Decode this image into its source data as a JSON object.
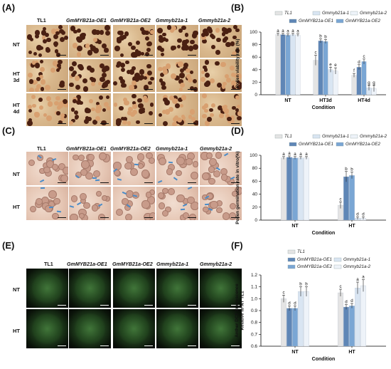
{
  "panels": {
    "A": {
      "label": "(A)",
      "columns": [
        "TL1",
        "GmMYB21a-OE1",
        "GmMYB21a-OE2",
        "Gmmyb21a-1",
        "Gmmyb21a-2"
      ],
      "rows": [
        [
          "NT"
        ],
        [
          "HT",
          "3d"
        ],
        [
          "HT",
          "4d"
        ]
      ]
    },
    "C": {
      "label": "(C)",
      "columns": [
        "TL1",
        "GmMYB21a-OE1",
        "GmMYB21a-OE2",
        "Gmmyb21a-1",
        "Gmmyb21a-2"
      ],
      "rows": [
        [
          "NT"
        ],
        [
          "HT"
        ]
      ]
    },
    "E": {
      "label": "(E)",
      "columns": [
        "TL1",
        "GmMYB21a-OE1",
        "GmMYB21a-OE2",
        "Gmmyb21a-1",
        "Gmmyb21a-2"
      ],
      "rows": [
        [
          "NT"
        ],
        [
          "HT"
        ]
      ]
    },
    "B": {
      "label": "(B)"
    },
    "D": {
      "label": "(D)"
    },
    "F": {
      "label": "(F)"
    }
  },
  "chart_data": [
    {
      "id": "B",
      "type": "bar",
      "ylabel": "Pollen viability rate (%)",
      "xlabel": "Condition",
      "categories": [
        "NT",
        "HT3d",
        "HT4d"
      ],
      "ylim": [
        0,
        100
      ],
      "yticks": [
        0,
        20,
        40,
        60,
        80,
        100
      ],
      "legend": [
        [
          "TL1",
          "Gmmyb21a-1",
          "Gmmyb21a-2"
        ],
        [
          "GmMYB21a-OE1",
          "GmMYB21a-OE2"
        ]
      ],
      "series": [
        {
          "name": "TL1",
          "color": "#e4e4e4",
          "values": [
            96,
            55,
            31
          ],
          "errors": [
            2,
            8,
            3
          ],
          "letters": [
            "a",
            "c",
            "f"
          ]
        },
        {
          "name": "GmMYB21a-OE1",
          "color": "#5f86b6",
          "values": [
            96,
            86,
            44
          ],
          "errors": [
            2,
            3,
            4
          ],
          "letters": [
            "a",
            "b",
            "d"
          ]
        },
        {
          "name": "GmMYB21a-OE2",
          "color": "#7aa6d4",
          "values": [
            95,
            85,
            53
          ],
          "errors": [
            2,
            3,
            4
          ],
          "letters": [
            "a",
            "b",
            "c"
          ]
        },
        {
          "name": "Gmmyb21a-1",
          "color": "#d9e5f2",
          "values": [
            96,
            40,
            11
          ],
          "errors": [
            2,
            4,
            4
          ],
          "letters": [
            "a",
            "e",
            "g"
          ]
        },
        {
          "name": "Gmmyb21a-2",
          "color": "#eef3f9",
          "values": [
            95,
            38,
            10
          ],
          "errors": [
            2,
            5,
            5
          ],
          "letters": [
            "a",
            "e",
            "g"
          ]
        }
      ]
    },
    {
      "id": "D",
      "type": "bar",
      "ylabel": "Pollen germination rate in vitro(%)",
      "xlabel": "Condition",
      "categories": [
        "NT",
        "HT"
      ],
      "ylim": [
        0,
        100
      ],
      "yticks": [
        0,
        20,
        40,
        60,
        80,
        100
      ],
      "legend": [
        [
          "TL1",
          "Gmmyb21a-1",
          "Gmmyb21a-2"
        ],
        [
          "GmMYB21a-OE1",
          "GmMYB21a-OE2"
        ]
      ],
      "series": [
        {
          "name": "TL1",
          "color": "#e4e4e4",
          "values": [
            96,
            23
          ],
          "errors": [
            2,
            5
          ],
          "letters": [
            "a",
            "c"
          ]
        },
        {
          "name": "GmMYB21a-OE1",
          "color": "#5f86b6",
          "values": [
            97,
            67
          ],
          "errors": [
            2,
            8
          ],
          "letters": [
            "a",
            "b"
          ]
        },
        {
          "name": "GmMYB21a-OE2",
          "color": "#7aa6d4",
          "values": [
            96,
            69
          ],
          "errors": [
            2,
            5
          ],
          "letters": [
            "a",
            "b"
          ]
        },
        {
          "name": "Gmmyb21a-1",
          "color": "#d9e5f2",
          "values": [
            96,
            3
          ],
          "errors": [
            2,
            2
          ],
          "letters": [
            "a",
            "d"
          ]
        },
        {
          "name": "Gmmyb21a-2",
          "color": "#eef3f9",
          "values": [
            96,
            3
          ],
          "errors": [
            2,
            2
          ],
          "letters": [
            "a",
            "d"
          ]
        }
      ]
    },
    {
      "id": "F",
      "type": "bar",
      "ylabel": "Anther DCF fluorescence Relative to NT TL1",
      "xlabel": "Condition",
      "categories": [
        "NT",
        "HT"
      ],
      "ylim": [
        0.6,
        1.2
      ],
      "yticks": [
        0.6,
        0.7,
        0.8,
        0.9,
        1.0,
        1.1,
        1.2
      ],
      "legend": [
        [
          "TL1"
        ],
        [
          "GmMYB21a-OE1",
          "Gmmyb21a-1"
        ],
        [
          "GmMYB21a-OE2",
          "Gmmyb21a-2"
        ]
      ],
      "series": [
        {
          "name": "TL1",
          "color": "#e4e4e4",
          "values": [
            1.0,
            1.05
          ],
          "errors": [
            0.03,
            0.03
          ],
          "letters": [
            "c",
            "c"
          ]
        },
        {
          "name": "GmMYB21a-OE1",
          "color": "#5f86b6",
          "values": [
            0.92,
            0.93
          ],
          "errors": [
            0.02,
            0.02
          ],
          "letters": [
            "d",
            "d"
          ]
        },
        {
          "name": "GmMYB21a-OE2",
          "color": "#7aa6d4",
          "values": [
            0.92,
            0.94
          ],
          "errors": [
            0.02,
            0.02
          ],
          "letters": [
            "d",
            "d"
          ]
        },
        {
          "name": "Gmmyb21a-1",
          "color": "#d9e5f2",
          "values": [
            1.06,
            1.09
          ],
          "errors": [
            0.04,
            0.05
          ],
          "letters": [
            "b",
            "a"
          ]
        },
        {
          "name": "Gmmyb21a-2",
          "color": "#eef3f9",
          "values": [
            1.06,
            1.11
          ],
          "errors": [
            0.04,
            0.05
          ],
          "letters": [
            "b",
            "a"
          ]
        }
      ]
    }
  ]
}
